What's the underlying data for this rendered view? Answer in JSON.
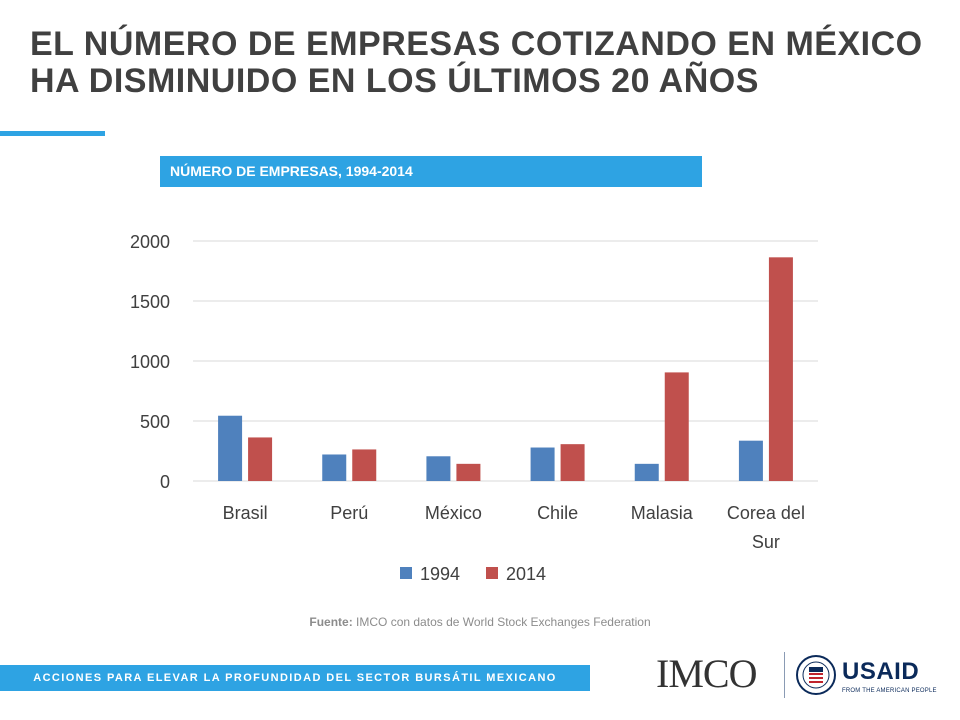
{
  "slide": {
    "title_line1": "EL NÚMERO DE EMPRESAS COTIZANDO EN MÉXICO",
    "title_line2": "HA DISMINUIDO EN LOS ÚLTIMOS 20 AÑOS",
    "subtitle": "NÚMERO DE EMPRESAS, 1994-2014",
    "source_label": "Fuente:",
    "source_text": " IMCO con datos de World Stock Exchanges Federation",
    "footer": "ACCIONES PARA ELEVAR LA PROFUNDIDAD DEL SECTOR BURSÁTIL MEXICANO",
    "logos": {
      "imco": "IMCO",
      "usaid": "USAID",
      "usaid_tagline": "FROM THE AMERICAN PEOPLE"
    }
  },
  "colors": {
    "accent": "#2ea3e3",
    "series_1994": "#4f81bd",
    "series_2014": "#c0504d",
    "text": "#404040"
  },
  "chart_data": {
    "type": "bar",
    "categories": [
      [
        "Brasil"
      ],
      [
        "Perú"
      ],
      [
        "México"
      ],
      [
        "Chile"
      ],
      [
        "Malasia"
      ],
      [
        "Corea del",
        "Sur"
      ]
    ],
    "series": [
      {
        "name": "1994",
        "color": "#4f81bd",
        "values": [
          544,
          221,
          206,
          279,
          143,
          336
        ]
      },
      {
        "name": "2014",
        "color": "#c0504d",
        "values": [
          363,
          263,
          143,
          307,
          905,
          1864
        ]
      }
    ],
    "ylim": [
      0,
      2000
    ],
    "yticks": [
      "0",
      "500",
      "1000",
      "1500",
      "2000"
    ],
    "ytick_values": [
      0,
      500,
      1000,
      1500,
      2000
    ],
    "grid": true,
    "legend": "bottom"
  }
}
